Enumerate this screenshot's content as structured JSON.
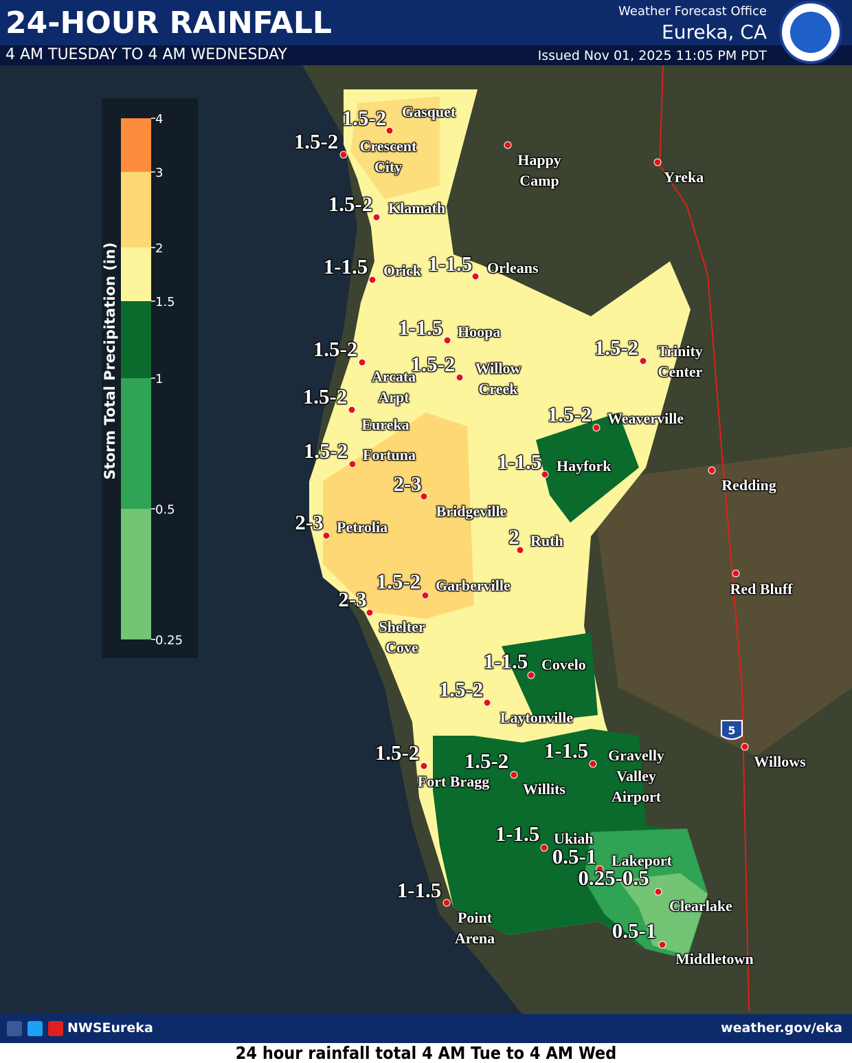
{
  "header": {
    "title": "24-HOUR RAINFALL",
    "subtitle": "4 AM TUESDAY TO 4 AM WEDNESDAY",
    "office_line1": "Weather Forecast Office",
    "office_line2": "Eureka, CA",
    "issued": "Issued Nov 01, 2025 11:05 PM PDT"
  },
  "legend": {
    "title": "Storm Total Precipitation (in)",
    "ticks": [
      0.25,
      0.5,
      1,
      1.5,
      2,
      3,
      4
    ],
    "colors": [
      "#74c476",
      "#31a354",
      "#0b6b2c",
      "#fdf59c",
      "#fdd874",
      "#fd8d3c"
    ]
  },
  "stations": [
    {
      "name": "Gasquet",
      "amount": "1.5-2"
    },
    {
      "name": "Crescent City",
      "amount": "1.5-2"
    },
    {
      "name": "Happy Camp"
    },
    {
      "name": "Yreka"
    },
    {
      "name": "Klamath",
      "amount": "1.5-2"
    },
    {
      "name": "Orick",
      "amount": "1-1.5"
    },
    {
      "name": "Orleans",
      "amount": "1-1.5"
    },
    {
      "name": "Hoopa",
      "amount": "1-1.5"
    },
    {
      "name": "Arcata Arpt",
      "amount": "1.5-2"
    },
    {
      "name": "Willow Creek",
      "amount": "1.5-2"
    },
    {
      "name": "Trinity Center",
      "amount": "1.5-2"
    },
    {
      "name": "Eureka",
      "amount": "1.5-2"
    },
    {
      "name": "Weaverville",
      "amount": "1.5-2"
    },
    {
      "name": "Fortuna",
      "amount": "1.5-2"
    },
    {
      "name": "Hayfork",
      "amount": "1-1.5"
    },
    {
      "name": "Redding"
    },
    {
      "name": "Bridgeville",
      "amount": "2-3"
    },
    {
      "name": "Petrolia",
      "amount": "2-3"
    },
    {
      "name": "Ruth",
      "amount": "2"
    },
    {
      "name": "Red Bluff"
    },
    {
      "name": "Garberville",
      "amount": "1.5-2"
    },
    {
      "name": "Shelter Cove",
      "amount": "2-3"
    },
    {
      "name": "Covelo",
      "amount": "1-1.5"
    },
    {
      "name": "Laytonville",
      "amount": "1.5-2"
    },
    {
      "name": "Willows"
    },
    {
      "name": "Fort Bragg",
      "amount": "1.5-2"
    },
    {
      "name": "Willits",
      "amount": "1.5-2"
    },
    {
      "name": "Gravelly Valley Airport",
      "amount": "1-1.5"
    },
    {
      "name": "Ukiah",
      "amount": "1-1.5"
    },
    {
      "name": "Lakeport",
      "amount": "0.5-1"
    },
    {
      "name": "Clearlake",
      "amount": "0.25-0.5"
    },
    {
      "name": "Point Arena",
      "amount": "1-1.5"
    },
    {
      "name": "Middletown",
      "amount": "0.5-1"
    }
  ],
  "interstate": "5",
  "footer": {
    "social": "NWSEureka",
    "website": "weather.gov/eka",
    "caption": "24 hour rainfall total 4 AM Tue to 4 AM Wed"
  }
}
